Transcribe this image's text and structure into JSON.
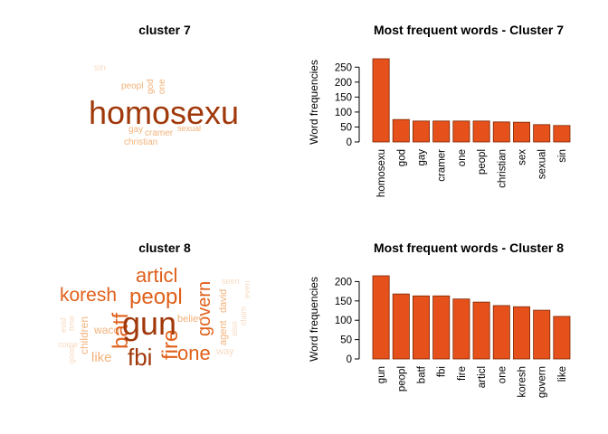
{
  "colors": {
    "bar_fill": "#e6501a",
    "bar_stroke": "#7a2a0a",
    "axis": "#000000",
    "cloud_dark": "#a0380a",
    "cloud_mid": "#e0601a",
    "cloud_light": "#f2b27a",
    "cloud_faint": "#f8dcc4"
  },
  "clouds": [
    {
      "title": "cluster 7",
      "words": [
        {
          "text": "homosexu",
          "weight": 1.0,
          "shade": "dark"
        },
        {
          "text": "god",
          "weight": 0.27,
          "shade": "light",
          "vertical": true
        },
        {
          "text": "one",
          "weight": 0.25,
          "shade": "light",
          "vertical": true
        },
        {
          "text": "peopl",
          "weight": 0.25,
          "shade": "light"
        },
        {
          "text": "gay",
          "weight": 0.25,
          "shade": "light"
        },
        {
          "text": "cramer",
          "weight": 0.25,
          "shade": "light"
        },
        {
          "text": "christian",
          "weight": 0.24,
          "shade": "light"
        },
        {
          "text": "sexual",
          "weight": 0.21,
          "shade": "light"
        },
        {
          "text": "sin",
          "weight": 0.2,
          "shade": "faint"
        }
      ]
    },
    {
      "title": "cluster 8",
      "words": [
        {
          "text": "gun",
          "weight": 1.0,
          "shade": "dark"
        },
        {
          "text": "fbi",
          "weight": 0.76,
          "shade": "dark"
        },
        {
          "text": "batf",
          "weight": 0.76,
          "shade": "mid",
          "vertical": true
        },
        {
          "text": "peopl",
          "weight": 0.78,
          "shade": "mid"
        },
        {
          "text": "koresh",
          "weight": 0.63,
          "shade": "mid"
        },
        {
          "text": "articl",
          "weight": 0.68,
          "shade": "mid"
        },
        {
          "text": "govern",
          "weight": 0.58,
          "shade": "mid",
          "vertical": true
        },
        {
          "text": "one",
          "weight": 0.64,
          "shade": "mid"
        },
        {
          "text": "fire",
          "weight": 0.72,
          "shade": "mid",
          "vertical": true
        },
        {
          "text": "like",
          "weight": 0.5,
          "shade": "light"
        },
        {
          "text": "children",
          "weight": 0.35,
          "shade": "light",
          "vertical": true
        },
        {
          "text": "waco",
          "weight": 0.35,
          "shade": "light"
        },
        {
          "text": "believ",
          "weight": 0.3,
          "shade": "light"
        },
        {
          "text": "agent",
          "weight": 0.3,
          "shade": "light",
          "vertical": true
        },
        {
          "text": "david",
          "weight": 0.3,
          "shade": "light",
          "vertical": true
        },
        {
          "text": "way",
          "weight": 0.3,
          "shade": "faint"
        },
        {
          "text": "also",
          "weight": 0.25,
          "shade": "faint",
          "vertical": true
        },
        {
          "text": "claim",
          "weight": 0.25,
          "shade": "faint",
          "vertical": true
        },
        {
          "text": "evid",
          "weight": 0.25,
          "shade": "faint",
          "vertical": true
        },
        {
          "text": "time",
          "weight": 0.25,
          "shade": "faint",
          "vertical": true
        },
        {
          "text": "come",
          "weight": 0.25,
          "shade": "faint"
        },
        {
          "text": "good",
          "weight": 0.25,
          "shade": "faint",
          "vertical": true
        },
        {
          "text": "seen",
          "weight": 0.22,
          "shade": "faint"
        },
        {
          "text": "even",
          "weight": 0.22,
          "shade": "faint",
          "vertical": true
        }
      ]
    }
  ],
  "chart_data": [
    {
      "type": "bar",
      "title": "Most frequent words - Cluster  7",
      "xlabel": "",
      "ylabel": "Word frequencies",
      "categories": [
        "homosexu",
        "god",
        "gay",
        "cramer",
        "one",
        "peopl",
        "christian",
        "sex",
        "sexual",
        "sin"
      ],
      "values": [
        278,
        75,
        70,
        70,
        70,
        70,
        67,
        66,
        58,
        55
      ],
      "yticks": [
        0,
        50,
        100,
        150,
        200,
        250
      ],
      "ylim": [
        0,
        278
      ]
    },
    {
      "type": "bar",
      "title": "Most frequent words - Cluster  8",
      "xlabel": "",
      "ylabel": "Word frequencies",
      "categories": [
        "gun",
        "peopl",
        "batf",
        "fbi",
        "fire",
        "articl",
        "one",
        "koresh",
        "govern",
        "like"
      ],
      "values": [
        215,
        168,
        163,
        163,
        155,
        147,
        138,
        135,
        126,
        110
      ],
      "yticks": [
        0,
        50,
        100,
        150,
        200
      ],
      "ylim": [
        0,
        215
      ]
    }
  ]
}
